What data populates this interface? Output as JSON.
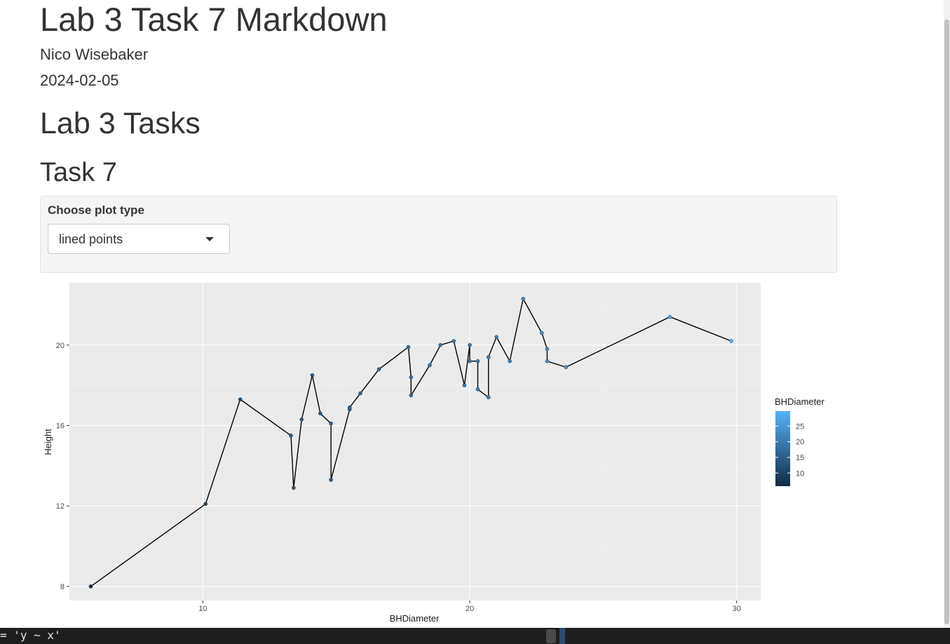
{
  "document": {
    "title": "Lab 3 Task 7 Markdown",
    "author": "Nico Wisebaker",
    "date": "2024-02-05",
    "section_heading": "Lab 3 Tasks",
    "subsection_heading": "Task 7"
  },
  "controls": {
    "plot_type_label": "Choose plot type",
    "plot_type_value": "lined points"
  },
  "colors": {
    "panel_background": "#ebebeb",
    "point_low": "#132b43",
    "point_high": "#56b1f7"
  },
  "chart_data": {
    "type": "line",
    "subtype": "lined points",
    "xlabel": "BHDiameter",
    "ylabel": "Height",
    "xlim": [
      5.0,
      30.9
    ],
    "ylim": [
      7.3,
      23.1
    ],
    "xticks": [
      10,
      20,
      30
    ],
    "yticks": [
      8,
      12,
      16,
      20
    ],
    "grid": true,
    "legend": {
      "title": "BHDiameter",
      "type": "colorbar",
      "range": [
        5.8,
        29.8
      ],
      "ticks": [
        10,
        15,
        20,
        25
      ],
      "placement": "right"
    },
    "points": [
      {
        "x": 5.8,
        "y": 8.0
      },
      {
        "x": 10.1,
        "y": 12.1
      },
      {
        "x": 11.4,
        "y": 17.3
      },
      {
        "x": 13.3,
        "y": 15.5
      },
      {
        "x": 13.4,
        "y": 12.9
      },
      {
        "x": 13.7,
        "y": 16.3
      },
      {
        "x": 14.1,
        "y": 18.5
      },
      {
        "x": 14.4,
        "y": 16.6
      },
      {
        "x": 14.8,
        "y": 16.1
      },
      {
        "x": 14.8,
        "y": 13.3
      },
      {
        "x": 15.5,
        "y": 16.8
      },
      {
        "x": 15.5,
        "y": 16.9
      },
      {
        "x": 15.9,
        "y": 17.6
      },
      {
        "x": 16.6,
        "y": 18.8
      },
      {
        "x": 17.7,
        "y": 19.9
      },
      {
        "x": 17.8,
        "y": 18.4
      },
      {
        "x": 17.8,
        "y": 17.5
      },
      {
        "x": 18.5,
        "y": 19.0
      },
      {
        "x": 18.9,
        "y": 20.0
      },
      {
        "x": 19.4,
        "y": 20.2
      },
      {
        "x": 19.8,
        "y": 18.0
      },
      {
        "x": 20.0,
        "y": 20.0
      },
      {
        "x": 20.0,
        "y": 19.2
      },
      {
        "x": 20.3,
        "y": 19.2
      },
      {
        "x": 20.3,
        "y": 17.8
      },
      {
        "x": 20.7,
        "y": 17.4
      },
      {
        "x": 20.7,
        "y": 19.4
      },
      {
        "x": 21.0,
        "y": 20.4
      },
      {
        "x": 21.5,
        "y": 19.2
      },
      {
        "x": 22.0,
        "y": 22.3
      },
      {
        "x": 22.7,
        "y": 20.6
      },
      {
        "x": 22.9,
        "y": 19.8
      },
      {
        "x": 22.9,
        "y": 19.2
      },
      {
        "x": 23.6,
        "y": 18.9
      },
      {
        "x": 27.5,
        "y": 21.4
      },
      {
        "x": 29.8,
        "y": 20.2
      }
    ]
  },
  "console": {
    "text": "= 'y ~ x'"
  }
}
